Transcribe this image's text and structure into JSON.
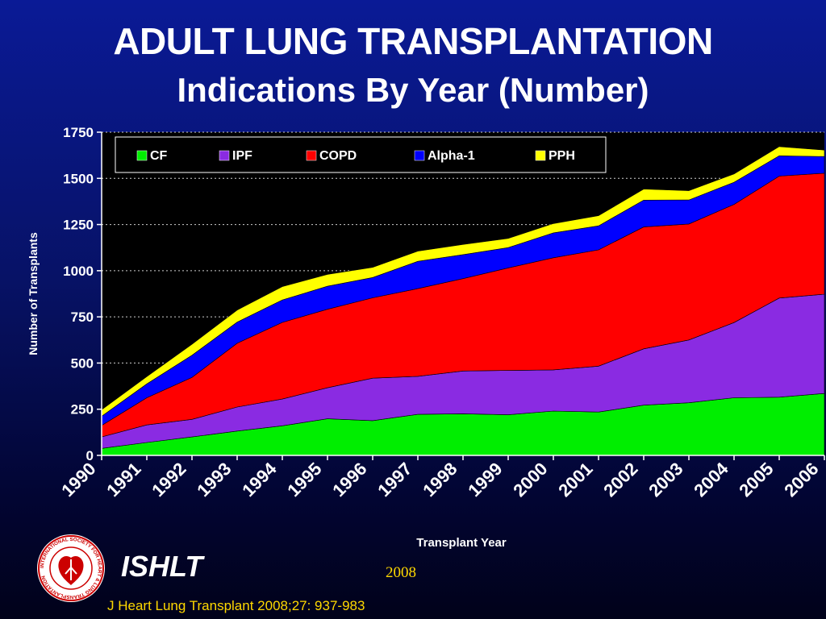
{
  "slide": {
    "title_line1": "ADULT LUNG TRANSPLANTATION",
    "title_line2": "Indications By Year (Number)",
    "org_name": "ISHLT",
    "year": "2008",
    "citation": "J Heart Lung Transplant 2008;27: 937-983",
    "logo_text": "INTERNATIONAL SOCIETY FOR HEART & LUNG TRANSPLANTATION"
  },
  "colors": {
    "background_top": "#0a1a96",
    "background_bottom": "#01021a",
    "plot_background": "#000000",
    "title": "#ffffff",
    "accent_text": "#ffd800",
    "CF": "#00ee00",
    "IPF": "#8a2be2",
    "COPD": "#ff0000",
    "Alpha-1": "#0000ff",
    "PPH": "#ffff00"
  },
  "chart_data": {
    "type": "area",
    "stacked": true,
    "xlabel": "Transplant Year",
    "ylabel": "Number of Transplants",
    "ylim": [
      0,
      1750
    ],
    "yticks": [
      0,
      250,
      500,
      750,
      1000,
      1250,
      1500,
      1750
    ],
    "grid": true,
    "legend_position": "top-left",
    "x": [
      "1990",
      "1991",
      "1992",
      "1993",
      "1994",
      "1995",
      "1996",
      "1997",
      "1998",
      "1999",
      "2000",
      "2001",
      "2002",
      "2003",
      "2004",
      "2005",
      "2006"
    ],
    "series": [
      {
        "name": "CF",
        "values": [
          38,
          70,
          100,
          132,
          160,
          198,
          188,
          222,
          225,
          220,
          240,
          235,
          272,
          285,
          312,
          315,
          335
        ]
      },
      {
        "name": "IPF",
        "values": [
          62,
          95,
          95,
          130,
          145,
          168,
          230,
          206,
          232,
          240,
          223,
          248,
          305,
          340,
          407,
          537,
          538
        ]
      },
      {
        "name": "COPD",
        "values": [
          62,
          147,
          227,
          345,
          415,
          425,
          435,
          475,
          500,
          555,
          607,
          630,
          660,
          628,
          640,
          660,
          655
        ]
      },
      {
        "name": "Alpha-1",
        "values": [
          50,
          75,
          120,
          115,
          122,
          125,
          110,
          148,
          130,
          110,
          135,
          130,
          145,
          130,
          120,
          110,
          90
        ]
      },
      {
        "name": "PPH",
        "values": [
          35,
          40,
          60,
          65,
          72,
          64,
          55,
          55,
          55,
          50,
          50,
          55,
          60,
          50,
          45,
          50,
          35
        ]
      }
    ]
  }
}
